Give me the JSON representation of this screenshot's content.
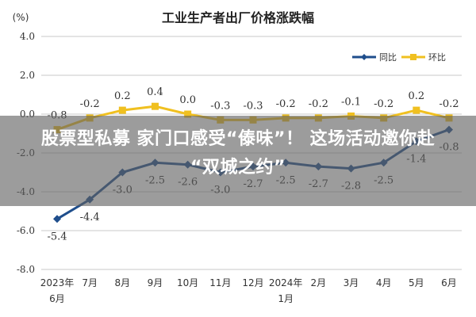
{
  "chart_data": {
    "type": "line",
    "title": "工业生产者出厂价格涨跌幅",
    "ylabel": "(%)",
    "ylim": [
      -8.0,
      4.0
    ],
    "yticks": [
      "4.0",
      "2.0",
      "0.0",
      "-2.0",
      "-4.0",
      "-6.0",
      "-8.0"
    ],
    "ytick_values": [
      4,
      2,
      0,
      -2,
      -4,
      -6,
      -8
    ],
    "categories": [
      [
        "2023年",
        "6月"
      ],
      [
        "7月"
      ],
      [
        "8月"
      ],
      [
        "9月"
      ],
      [
        "10月"
      ],
      [
        "11月"
      ],
      [
        "12月"
      ],
      [
        "2024年",
        "1月"
      ],
      [
        "2月"
      ],
      [
        "3月"
      ],
      [
        "4月"
      ],
      [
        "5月"
      ],
      [
        "6月"
      ]
    ],
    "legend_position": "top-right",
    "grid": "horizontal",
    "series": [
      {
        "name": "同比",
        "color": "#1f4e8c",
        "values": [
          -5.4,
          -4.4,
          -3.0,
          -2.5,
          -2.6,
          -3.0,
          -2.7,
          -2.5,
          -2.7,
          -2.8,
          -2.5,
          -1.4,
          -0.8
        ],
        "labels": [
          "-5.4",
          "-4.4",
          "-3.0",
          "-2.5",
          "-2.6",
          "-3.0",
          "-2.7",
          "-2.5",
          "-2.7",
          "-2.8",
          "-2.5",
          "-1.4",
          "-0.8"
        ]
      },
      {
        "name": "环比",
        "color": "#f0c020",
        "values": [
          -0.8,
          -0.2,
          0.2,
          0.4,
          0.0,
          -0.3,
          -0.3,
          -0.2,
          -0.2,
          -0.1,
          -0.2,
          0.2,
          -0.2
        ],
        "labels": [
          "-0.8",
          "-0.2",
          "0.2",
          "0.4",
          "0.0",
          "-0.3",
          "-0.3",
          "-0.2",
          "-0.2",
          "-0.1",
          "-0.2",
          "0.2",
          "-0.2"
        ]
      }
    ]
  },
  "overlay": {
    "line1": "股票型私募 家门口感受“傣味”！ 这场活动邀你赴",
    "line2": "“双城之约”"
  },
  "colors": {
    "grid": "#c8c8c8",
    "axis_text": "#333333",
    "overlay_bg": "#5f5f5f"
  }
}
